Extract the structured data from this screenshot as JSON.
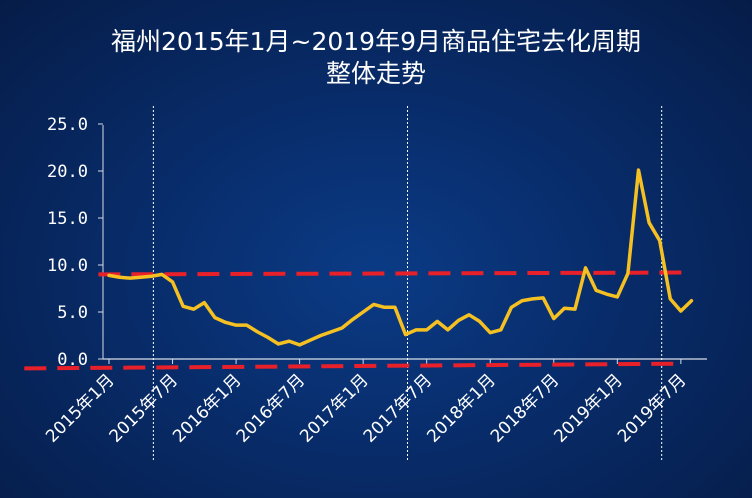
{
  "title_line1": "福州2015年1月~2019年9月商品住宅去化周期",
  "title_line2": "整体走势",
  "chart_data": {
    "type": "line",
    "title": "福州2015年1月~2019年9月商品住宅去化周期 整体走势",
    "ylim": [
      0,
      25
    ],
    "yticks": [
      "0.0",
      "5.0",
      "10.0",
      "15.0",
      "20.0",
      "25.0"
    ],
    "ytick_values": [
      0,
      5,
      10,
      15,
      20,
      25
    ],
    "xtick_labels": [
      "2015年1月",
      "2015年7月",
      "2016年1月",
      "2016年7月",
      "2017年1月",
      "2017年7月",
      "2018年1月",
      "2018年7月",
      "2019年1月",
      "2019年7月"
    ],
    "xtick_indices": [
      0,
      6,
      12,
      18,
      24,
      30,
      36,
      42,
      48,
      54
    ],
    "divider_indices": [
      4,
      28,
      52
    ],
    "series": [
      {
        "color": "#f5c022",
        "values": [
          8.9,
          8.7,
          8.6,
          8.7,
          8.8,
          9.0,
          8.2,
          5.6,
          5.3,
          6.0,
          4.4,
          3.9,
          3.6,
          3.6,
          2.9,
          2.3,
          1.6,
          1.9,
          1.5,
          2.0,
          2.5,
          2.9,
          3.3,
          4.2,
          5.0,
          5.8,
          5.5,
          5.5,
          2.6,
          3.1,
          3.1,
          4.0,
          3.1,
          4.1,
          4.7,
          4.0,
          2.8,
          3.1,
          5.5,
          6.2,
          6.4,
          6.5,
          4.3,
          5.4,
          5.3,
          9.7,
          7.3,
          6.9,
          6.6,
          9.1,
          20.1,
          14.5,
          12.6,
          6.4,
          5.1,
          6.2
        ]
      }
    ],
    "reference_lines": [
      {
        "style": "dashed",
        "color": "#e8202a",
        "from": {
          "x": -1,
          "y": 9.0
        },
        "to": {
          "x": 55,
          "y": 9.2
        }
      },
      {
        "style": "dashed",
        "color": "#e8202a",
        "from": {
          "x": -8,
          "y": -1.0
        },
        "to": {
          "x": 54,
          "y": -0.5
        }
      }
    ],
    "grid": false,
    "legend": "none"
  }
}
